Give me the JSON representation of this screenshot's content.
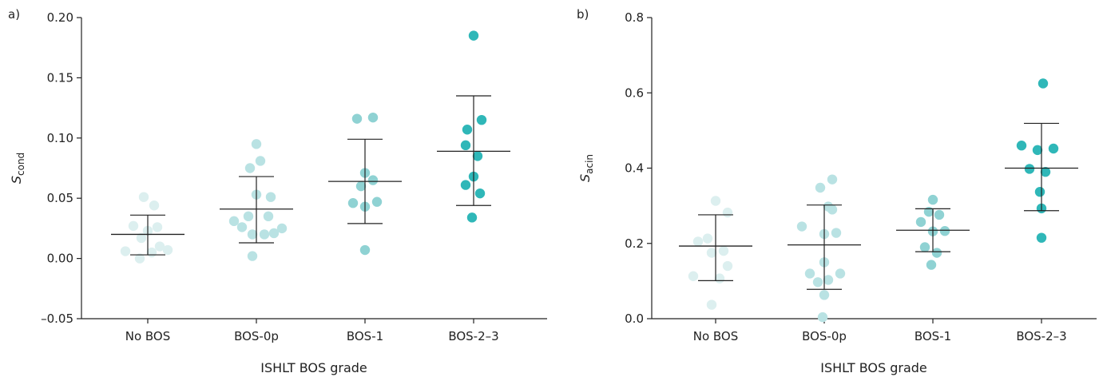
{
  "chart_data": [
    {
      "panel_label": "a)",
      "type": "scatter",
      "xlabel": "ISHLT BOS grade",
      "ylabel_main": "S",
      "ylabel_sub": "cond",
      "ylim": [
        -0.05,
        0.2
      ],
      "yticks": [
        -0.05,
        0.0,
        0.05,
        0.1,
        0.15,
        0.2
      ],
      "ytick_labels": [
        "–0.05",
        "0.00",
        "0.05",
        "0.10",
        "0.15",
        "0.20"
      ],
      "categories": [
        "No BOS",
        "BOS-0p",
        "BOS-1",
        "BOS-2–3"
      ],
      "groups": [
        {
          "color": "#dcefef",
          "mean": 0.02,
          "sd_low": 0.003,
          "sd_high": 0.036,
          "points": [
            [
              -0.28,
              0.006
            ],
            [
              -0.18,
              0.027
            ],
            [
              -0.08,
              0.017
            ],
            [
              0.0,
              0.023
            ],
            [
              0.08,
              0.044
            ],
            [
              -0.05,
              0.051
            ],
            [
              0.12,
              0.026
            ],
            [
              -0.1,
              0.0
            ],
            [
              0.05,
              0.005
            ],
            [
              0.15,
              0.01
            ],
            [
              0.25,
              0.007
            ]
          ]
        },
        {
          "color": "#b9e2e3",
          "mean": 0.041,
          "sd_low": 0.013,
          "sd_high": 0.068,
          "points": [
            [
              -0.28,
              0.031
            ],
            [
              -0.18,
              0.026
            ],
            [
              -0.1,
              0.035
            ],
            [
              -0.05,
              0.02
            ],
            [
              -0.08,
              0.075
            ],
            [
              0.0,
              0.053
            ],
            [
              0.0,
              0.095
            ],
            [
              0.05,
              0.081
            ],
            [
              0.1,
              0.02
            ],
            [
              0.15,
              0.035
            ],
            [
              0.18,
              0.051
            ],
            [
              0.22,
              0.021
            ],
            [
              0.32,
              0.025
            ],
            [
              -0.05,
              0.002
            ]
          ]
        },
        {
          "color": "#8fd2d3",
          "mean": 0.064,
          "sd_low": 0.029,
          "sd_high": 0.099,
          "points": [
            [
              -0.15,
              0.046
            ],
            [
              -0.05,
              0.06
            ],
            [
              0.0,
              0.071
            ],
            [
              0.0,
              0.043
            ],
            [
              0.1,
              0.065
            ],
            [
              0.15,
              0.047
            ],
            [
              -0.1,
              0.116
            ],
            [
              0.1,
              0.117
            ],
            [
              0.0,
              0.007
            ]
          ]
        },
        {
          "color": "#2fb7b8",
          "mean": 0.089,
          "sd_low": 0.044,
          "sd_high": 0.135,
          "points": [
            [
              -0.1,
              0.061
            ],
            [
              -0.08,
              0.107
            ],
            [
              -0.1,
              0.094
            ],
            [
              0.0,
              0.068
            ],
            [
              0.05,
              0.085
            ],
            [
              0.08,
              0.054
            ],
            [
              0.1,
              0.115
            ],
            [
              -0.02,
              0.034
            ],
            [
              0.0,
              0.185
            ]
          ]
        }
      ]
    },
    {
      "panel_label": "b)",
      "type": "scatter",
      "xlabel": "ISHLT BOS grade",
      "ylabel_main": "S",
      "ylabel_sub": "acin",
      "ylim": [
        0.0,
        0.8
      ],
      "yticks": [
        0.0,
        0.2,
        0.4,
        0.6,
        0.8
      ],
      "ytick_labels": [
        "0.0",
        "0.2",
        "0.4",
        "0.6",
        "0.8"
      ],
      "categories": [
        "No BOS",
        "BOS-0p",
        "BOS-1",
        "BOS-2–3"
      ],
      "groups": [
        {
          "color": "#dcefef",
          "mean": 0.193,
          "sd_low": 0.101,
          "sd_high": 0.276,
          "points": [
            [
              -0.28,
              0.113
            ],
            [
              -0.22,
              0.205
            ],
            [
              -0.1,
              0.213
            ],
            [
              -0.05,
              0.175
            ],
            [
              0.05,
              0.107
            ],
            [
              0.1,
              0.18
            ],
            [
              0.15,
              0.14
            ],
            [
              0.0,
              0.313
            ],
            [
              0.15,
              0.282
            ],
            [
              -0.05,
              0.037
            ]
          ]
        },
        {
          "color": "#b9e2e3",
          "mean": 0.196,
          "sd_low": 0.078,
          "sd_high": 0.302,
          "points": [
            [
              -0.28,
              0.245
            ],
            [
              -0.18,
              0.12
            ],
            [
              -0.08,
              0.097
            ],
            [
              0.0,
              0.15
            ],
            [
              0.0,
              0.225
            ],
            [
              0.05,
              0.103
            ],
            [
              0.1,
              0.29
            ],
            [
              0.15,
              0.228
            ],
            [
              0.2,
              0.12
            ],
            [
              -0.05,
              0.348
            ],
            [
              0.1,
              0.37
            ],
            [
              0.0,
              0.063
            ],
            [
              -0.02,
              0.004
            ],
            [
              0.05,
              0.298
            ]
          ]
        },
        {
          "color": "#8fd2d3",
          "mean": 0.235,
          "sd_low": 0.178,
          "sd_high": 0.292,
          "points": [
            [
              -0.15,
              0.257
            ],
            [
              -0.05,
              0.284
            ],
            [
              0.0,
              0.232
            ],
            [
              0.08,
              0.276
            ],
            [
              0.15,
              0.233
            ],
            [
              -0.1,
              0.19
            ],
            [
              0.05,
              0.175
            ],
            [
              0.0,
              0.316
            ],
            [
              -0.02,
              0.143
            ]
          ]
        },
        {
          "color": "#2fb7b8",
          "mean": 0.4,
          "sd_low": 0.287,
          "sd_high": 0.519,
          "points": [
            [
              -0.25,
              0.46
            ],
            [
              -0.15,
              0.398
            ],
            [
              -0.05,
              0.448
            ],
            [
              0.05,
              0.39
            ],
            [
              0.15,
              0.452
            ],
            [
              -0.02,
              0.337
            ],
            [
              0.0,
              0.293
            ],
            [
              0.0,
              0.215
            ],
            [
              0.02,
              0.625
            ]
          ]
        }
      ]
    }
  ]
}
